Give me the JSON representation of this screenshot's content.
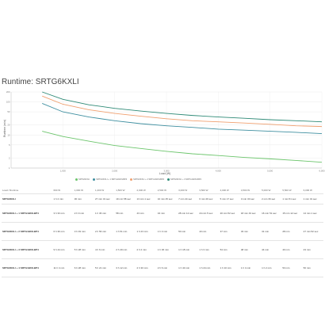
{
  "chart_data": {
    "type": "line",
    "title": "Runtime: SRTG6KXLI",
    "xlabel": "Load (W)",
    "ylabel": "Runtime (min)",
    "yscale": "log",
    "xlim": [
      0,
      6000
    ],
    "ylim": [
      1,
      200
    ],
    "x_ticks": [
      "1,000",
      "2,000",
      "3,000",
      "4,000",
      "5,000",
      "6,000"
    ],
    "y_ticks": [
      "200",
      "100",
      "50",
      "20",
      "10",
      "5",
      "2",
      "1"
    ],
    "grid": true,
    "legend_position": "bottom",
    "x": [
      600,
      1000,
      1500,
      2000,
      2500,
      3000,
      3500,
      4000,
      4500,
      5000,
      5500,
      6000
    ],
    "series": [
      {
        "name": "SRTG6KXLI",
        "color": "#6cc56c",
        "values": [
          13,
          9,
          6.5,
          4.8,
          3.9,
          3.2,
          2.7,
          2.4,
          2.1,
          1.9,
          1.7,
          1.5
        ]
      },
      {
        "name": "SRTG6KXLI + 1 SRTG192XLBP4",
        "color": "#3f8fa0",
        "values": [
          90,
          50,
          35,
          27,
          22,
          19,
          17,
          15,
          14,
          13,
          12,
          11
        ]
      },
      {
        "name": "SRTG6KXLI + 2 SRTG192XLBP4",
        "color": "#f0a070",
        "values": [
          150,
          85,
          58,
          45,
          37,
          31,
          27,
          25,
          23,
          21,
          19,
          18
        ]
      },
      {
        "name": "SRTG6KXLI + 3 SRTG192XLBP4",
        "color": "#2e8a76",
        "values": [
          200,
          120,
          82,
          64,
          53,
          45,
          39,
          35,
          32,
          29,
          27,
          25
        ]
      }
    ]
  },
  "table": {
    "headers": [
      "Load / Runtime",
      "600 W",
      "1,000 W",
      "1,200 W",
      "1,500 W",
      "2,000 W",
      "2,500 W",
      "3,000 W",
      "3,500 W",
      "4,000 W",
      "4,500 W",
      "5,000 W",
      "5,500 W",
      "6,000 W"
    ],
    "rows": [
      {
        "model": "SRTG6KXLI",
        "cells": [
          "1 h 2 min",
          "36 min",
          "27 min 31 sec",
          "19 min 58 sec",
          "13 min 1 sec",
          "10 min 45 sec",
          "7 min 44 sec",
          "6 min 29 sec",
          "5 min 17 sec",
          "3 min 30 sec",
          "2 min 36 sec",
          "1 min 51 sec",
          "1 min 31 sec"
        ]
      },
      {
        "model": "SRTG6KXLI + 1 SRTG192XLBP4",
        "cells": [
          "3 h 33 min",
          "2 h 9 min",
          "1 h 36 min",
          "58 min",
          "43 min",
          "34 min",
          "28 min 12 sec",
          "24 min 5 sec",
          "20 min 52 sec",
          "18 min 43 sec",
          "16 min 51 sec",
          "15 min 12 sec",
          "14 min 1 sec"
        ]
      },
      {
        "model": "SRTG6KXLI + 2 SRTG192XLBP4",
        "cells": [
          "6 h 36 min",
          "3 h 49 min",
          "2 h 56 min",
          "1 h 51 min",
          "1 h 23 min",
          "1 h 3 min",
          "50 min",
          "43 min",
          "37 min",
          "33 min",
          "31 min",
          "28 min",
          "27 min 52 sec"
        ]
      },
      {
        "model": "SRTG6KXLI + 3 SRTG192XLBP4",
        "cells": [
          "9 h 44 min",
          "5 h 28 min",
          "4 h 6 min",
          "2 h 49 min",
          "2 h 2 min",
          "1 h 36 min",
          "1 h 18 min",
          "1 h 3 min",
          "54 min",
          "48 min",
          "44 min",
          "40 min",
          "43 min"
        ]
      },
      {
        "model": "SRTG6KXLI + 4 SRTG192XLBP4",
        "cells": [
          "11 h 4 min",
          "6 h 28 min",
          "5 h 21 min",
          "3 h 12 min",
          "2 h 30 min",
          "2 h 6 min",
          "1 h 43 min",
          "1 h 24 min",
          "1 h 10 min",
          "1 h 4 min",
          "1 h 2 min",
          "53 min",
          "50 min"
        ]
      }
    ]
  }
}
